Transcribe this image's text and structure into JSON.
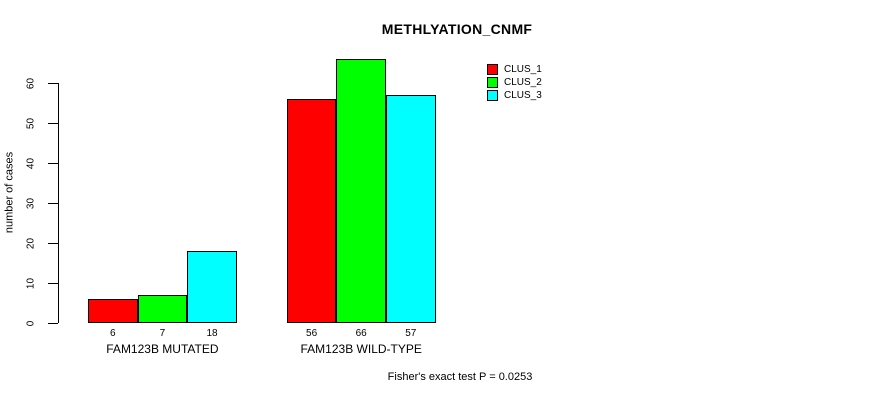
{
  "chart_data": {
    "type": "bar",
    "title": "METHLYATION_CNMF",
    "ylabel": "number of cases",
    "xlabel": "",
    "categories": [
      "FAM123B MUTATED",
      "FAM123B WILD-TYPE"
    ],
    "series": [
      {
        "name": "CLUS_1",
        "color": "#ff0000",
        "values": [
          6,
          56
        ]
      },
      {
        "name": "CLUS_2",
        "color": "#00ff00",
        "values": [
          7,
          66
        ]
      },
      {
        "name": "CLUS_3",
        "color": "#00ffff",
        "values": [
          18,
          57
        ]
      }
    ],
    "bar_value_labels": [
      [
        "6",
        "7",
        "18"
      ],
      [
        "56",
        "66",
        "57"
      ]
    ],
    "ylim": [
      0,
      60
    ],
    "yticks": [
      "0",
      "10",
      "20",
      "30",
      "40",
      "50",
      "60"
    ],
    "legend": {
      "position": "top-right",
      "entries": [
        {
          "label": "CLUS_1",
          "color": "#ff0000"
        },
        {
          "label": "CLUS_2",
          "color": "#00ff00"
        },
        {
          "label": "CLUS_3",
          "color": "#00ffff"
        }
      ]
    },
    "annotation": "Fisher's exact test P = 0.0253",
    "grid": false,
    "background": "#ffffff",
    "bar_border_color": "#000000",
    "text_color": "#000000"
  }
}
